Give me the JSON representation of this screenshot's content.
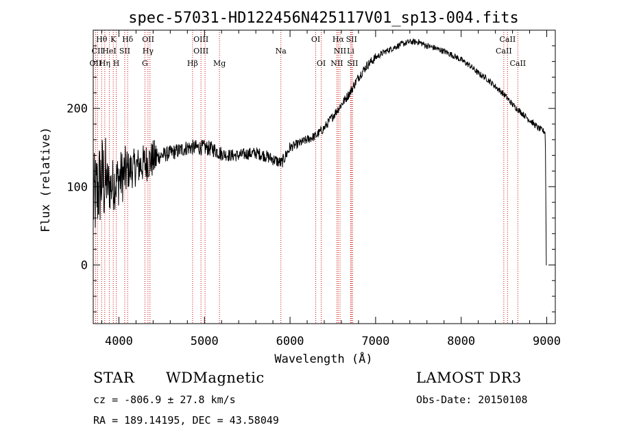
{
  "chart_data": {
    "type": "line",
    "title": "spec-57031-HD122456N425117V01_sp13-004.fits",
    "xlabel": "Wavelength (Å)",
    "ylabel": "Flux (relative)",
    "xlim": [
      3700,
      9100
    ],
    "ylim": [
      -75,
      300
    ],
    "xticks": [
      4000,
      5000,
      6000,
      7000,
      8000,
      9000
    ],
    "yticks": [
      0,
      100,
      200
    ],
    "line_color": "#000000",
    "marker_color": "#cc0000",
    "series": [
      {
        "name": "spectrum",
        "x": [
          3700,
          3750,
          3800,
          3850,
          3900,
          3950,
          4000,
          4100,
          4200,
          4300,
          4400,
          4500,
          4600,
          4700,
          4800,
          4900,
          5000,
          5100,
          5200,
          5300,
          5400,
          5500,
          5600,
          5700,
          5800,
          5900,
          6000,
          6100,
          6200,
          6300,
          6400,
          6500,
          6600,
          6700,
          6800,
          6900,
          7000,
          7100,
          7200,
          7300,
          7400,
          7500,
          7600,
          7700,
          7800,
          7900,
          8000,
          8100,
          8200,
          8300,
          8400,
          8500,
          8600,
          8700,
          8800,
          8900,
          8980,
          9000
        ],
        "y": [
          80,
          95,
          110,
          105,
          100,
          105,
          110,
          120,
          125,
          130,
          135,
          140,
          143,
          146,
          150,
          150,
          150,
          148,
          142,
          140,
          140,
          142,
          143,
          140,
          135,
          130,
          150,
          155,
          160,
          165,
          175,
          190,
          205,
          220,
          240,
          255,
          265,
          272,
          277,
          282,
          285,
          285,
          280,
          277,
          273,
          268,
          262,
          255,
          245,
          238,
          228,
          218,
          205,
          195,
          185,
          175,
          170,
          0
        ]
      }
    ],
    "lines": [
      {
        "name": "Hθ",
        "x": 3798,
        "row": 0
      },
      {
        "name": "K",
        "x": 3934,
        "row": 0
      },
      {
        "name": "Hδ",
        "x": 4102,
        "row": 0
      },
      {
        "name": "OII",
        "x": 4342,
        "row": 0
      },
      {
        "name": "OIII",
        "x": 4959,
        "row": 0
      },
      {
        "name": "OI",
        "x": 6300,
        "row": 0
      },
      {
        "name": "Hα",
        "x": 6563,
        "row": 0
      },
      {
        "name": "SII",
        "x": 6718,
        "row": 0
      },
      {
        "name": "CaII",
        "x": 8542,
        "row": 0
      },
      {
        "name": "CII",
        "x": 3750,
        "row": 1
      },
      {
        "name": "HeI",
        "x": 3888,
        "row": 1
      },
      {
        "name": "SII",
        "x": 4068,
        "row": 1
      },
      {
        "name": "Hγ",
        "x": 4340,
        "row": 1
      },
      {
        "name": "OIII",
        "x": 4959,
        "row": 1
      },
      {
        "name": "Na",
        "x": 5893,
        "row": 1
      },
      {
        "name": "NII",
        "x": 6584,
        "row": 1
      },
      {
        "name": "Li",
        "x": 6708,
        "row": 1
      },
      {
        "name": "CaII",
        "x": 8498,
        "row": 1
      },
      {
        "name": "OII",
        "x": 3727,
        "row": 2
      },
      {
        "name": "Hη",
        "x": 3835,
        "row": 2
      },
      {
        "name": "H",
        "x": 3969,
        "row": 2
      },
      {
        "name": "G",
        "x": 4304,
        "row": 2
      },
      {
        "name": "Hβ",
        "x": 4861,
        "row": 2
      },
      {
        "name": "Mg",
        "x": 5175,
        "row": 2
      },
      {
        "name": "OI",
        "x": 6364,
        "row": 2
      },
      {
        "name": "NII",
        "x": 6548,
        "row": 2
      },
      {
        "name": "SII",
        "x": 6731,
        "row": 2
      },
      {
        "name": "CaII",
        "x": 8662,
        "row": 2
      }
    ],
    "red_lines_x": [
      3727,
      3750,
      3798,
      3835,
      3888,
      3934,
      3969,
      4068,
      4102,
      4304,
      4340,
      4363,
      4861,
      4959,
      5007,
      5175,
      5893,
      6300,
      6364,
      6548,
      6563,
      6584,
      6708,
      6718,
      6731,
      8498,
      8542,
      8662
    ]
  },
  "info": {
    "class": "STAR",
    "subclass": "WDMagnetic",
    "survey": "LAMOST DR3",
    "cz": "cz = -806.9 ± 27.8 km/s",
    "obs_date": "Obs-Date: 20150108",
    "radec": "RA = 189.14195, DEC =  43.58049"
  }
}
